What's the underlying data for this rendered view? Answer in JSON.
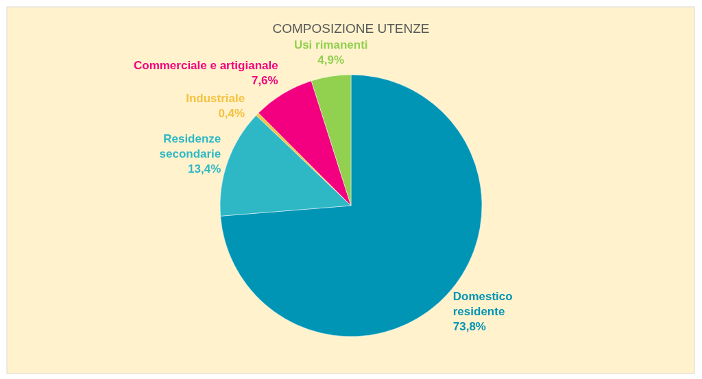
{
  "chart_data": {
    "type": "pie",
    "title": "COMPOSIZIONE UTENZE",
    "categories": [
      "Domestico residente",
      "Residenze secondarie",
      "Industriale",
      "Commerciale e artigianale",
      "Usi rimanenti"
    ],
    "values": [
      73.8,
      13.4,
      0.4,
      7.6,
      4.9
    ],
    "value_labels": [
      "73,8%",
      "13,4%",
      "0,4%",
      "7,6%",
      "4,9%"
    ],
    "colors": [
      "#0094b5",
      "#2eb8c6",
      "#f5c242",
      "#f2007f",
      "#92d050"
    ],
    "legend": false
  }
}
